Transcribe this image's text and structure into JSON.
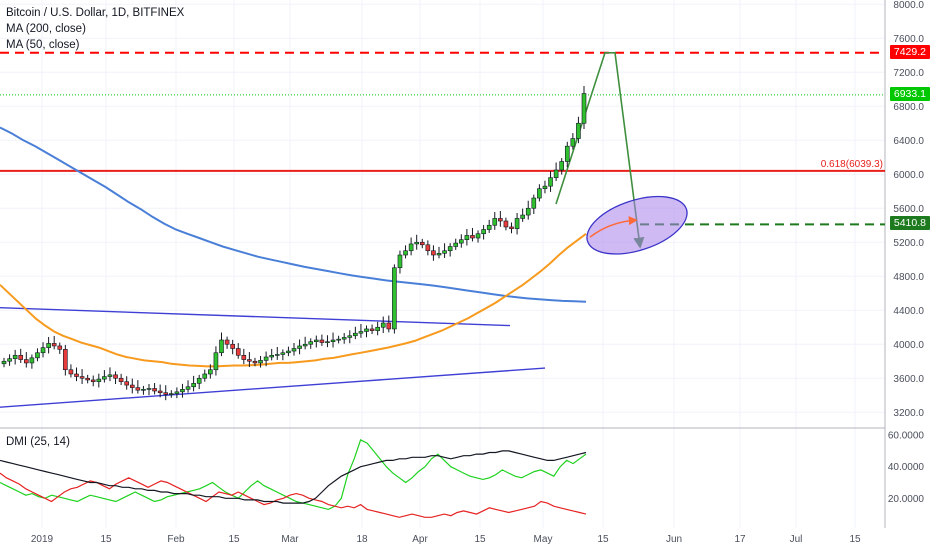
{
  "chart_data": {
    "type": "line",
    "title": "Bitcoin / U.S. Dollar, 1D, BITFINEX",
    "indicators": [
      "MA (200, close)",
      "MA (50, close)"
    ],
    "x_tick_labels": [
      "2019",
      "15",
      "Feb",
      "15",
      "Mar",
      "18",
      "Apr",
      "15",
      "May",
      "15",
      "Jun",
      "17",
      "Jul",
      "15"
    ],
    "y_tick_labels": [
      "8000.0",
      "7600.0",
      "7200.0",
      "6800.0",
      "6400.0",
      "6000.0",
      "5600.0",
      "5200.0",
      "4800.0",
      "4400.0",
      "4000.0",
      "3600.0",
      "3200.0"
    ],
    "ylim": [
      3050,
      8050
    ],
    "levels": {
      "target": {
        "value": 7429.2,
        "label": "7429.2",
        "color": "#ff0000"
      },
      "current": {
        "value": 6933.1,
        "label": "6933.1",
        "color": "#00c800"
      },
      "fib": {
        "value": 6039.3,
        "label": "0.618(6039.3)",
        "color": "#e8201c"
      },
      "support": {
        "value": 5410.8,
        "label": "5410.8",
        "color": "#1e7a1e"
      }
    },
    "price_series": [
      3800,
      3830,
      3870,
      3820,
      3780,
      3840,
      3900,
      3960,
      4010,
      3980,
      3940,
      3700,
      3650,
      3620,
      3600,
      3580,
      3560,
      3590,
      3620,
      3640,
      3600,
      3560,
      3520,
      3490,
      3460,
      3470,
      3480,
      3450,
      3430,
      3410,
      3420,
      3440,
      3470,
      3500,
      3540,
      3600,
      3650,
      3700,
      3900,
      4050,
      4000,
      3950,
      3870,
      3820,
      3800,
      3780,
      3810,
      3850,
      3870,
      3880,
      3900,
      3920,
      3950,
      3980,
      4000,
      4030,
      4050,
      4020,
      4030,
      4050,
      4060,
      4080,
      4100,
      4130,
      4150,
      4180,
      4160,
      4200,
      4250,
      4180,
      4900,
      5050,
      5100,
      5180,
      5200,
      5170,
      5100,
      5050,
      5070,
      5100,
      5150,
      5190,
      5230,
      5280,
      5250,
      5300,
      5350,
      5400,
      5480,
      5450,
      5380,
      5360,
      5480,
      5520,
      5600,
      5720,
      5830,
      5860,
      5960,
      6050,
      6150,
      6330,
      6420,
      6600,
      6950
    ],
    "ma200_series": [
      6550,
      6480,
      6400,
      6330,
      6250,
      6170,
      6090,
      6010,
      5930,
      5850,
      5760,
      5670,
      5590,
      5500,
      5420,
      5350,
      5300,
      5250,
      5200,
      5150,
      5110,
      5070,
      5030,
      5000,
      4970,
      4940,
      4910,
      4885,
      4860,
      4835,
      4810,
      4790,
      4770,
      4750,
      4735,
      4720,
      4705,
      4690,
      4670,
      4650,
      4630,
      4610,
      4590,
      4570,
      4555,
      4540,
      4530,
      4520,
      4510,
      4505,
      4500
    ],
    "ma50_series": [
      4700,
      4600,
      4500,
      4400,
      4300,
      4220,
      4150,
      4100,
      4060,
      4020,
      3990,
      3960,
      3920,
      3880,
      3850,
      3830,
      3810,
      3800,
      3790,
      3770,
      3760,
      3750,
      3745,
      3740,
      3740,
      3745,
      3750,
      3750,
      3755,
      3760,
      3770,
      3780,
      3780,
      3790,
      3800,
      3810,
      3830,
      3840,
      3860,
      3880,
      3900,
      3920,
      3940,
      3960,
      3985,
      4010,
      4040,
      4080,
      4120,
      4160,
      4210,
      4260,
      4310,
      4370,
      4430,
      4490,
      4560,
      4630,
      4700,
      4780,
      4860,
      4950,
      5050,
      5140,
      5220,
      5300
    ],
    "dmi": {
      "label": "DMI (25, 14)",
      "y_tick_labels": [
        "60.0000",
        "40.0000",
        "20.0000"
      ],
      "ylim": [
        5,
        62
      ],
      "plus_di": [
        30,
        28,
        26,
        24,
        22,
        23,
        21,
        20,
        22,
        21,
        20,
        19,
        18,
        20,
        22,
        21,
        20,
        19,
        18,
        20,
        22,
        24,
        22,
        20,
        18,
        19,
        21,
        22,
        23,
        24,
        25,
        26,
        28,
        30,
        27,
        24,
        22,
        20,
        24,
        28,
        31,
        28,
        26,
        24,
        22,
        20,
        18,
        17,
        16,
        15,
        14,
        13,
        15,
        20,
        35,
        45,
        57,
        55,
        50,
        45,
        40,
        36,
        33,
        30,
        33,
        37,
        40,
        45,
        48,
        44,
        40,
        38,
        36,
        34,
        33,
        32,
        33,
        35,
        38,
        36,
        34,
        33,
        35,
        37,
        38,
        36,
        34,
        40,
        44,
        42,
        45,
        48
      ],
      "minus_di": [
        36,
        33,
        31,
        29,
        26,
        24,
        22,
        20,
        18,
        21,
        24,
        26,
        27,
        29,
        31,
        30,
        28,
        26,
        29,
        31,
        33,
        31,
        29,
        27,
        29,
        31,
        30,
        28,
        26,
        24,
        22,
        20,
        18,
        21,
        24,
        23,
        22,
        24,
        22,
        20,
        18,
        16,
        17,
        19,
        20,
        22,
        23,
        22,
        20,
        19,
        18,
        16,
        15,
        14,
        15,
        14,
        16,
        13,
        12,
        11,
        10,
        9,
        8,
        9,
        10,
        9,
        8,
        8,
        9,
        10,
        9,
        11,
        12,
        11,
        10,
        12,
        14,
        13,
        12,
        11,
        12,
        13,
        14,
        15,
        18,
        17,
        15,
        14,
        13,
        12,
        11,
        10
      ],
      "adx": [
        44,
        43,
        42,
        41,
        40,
        39,
        38,
        37,
        36,
        35,
        34,
        33,
        32,
        31,
        30,
        30,
        29,
        28,
        28,
        27,
        27,
        26,
        26,
        25,
        25,
        24,
        24,
        23,
        23,
        23,
        22,
        22,
        21,
        21,
        21,
        20,
        20,
        20,
        19,
        19,
        19,
        18,
        18,
        18,
        17,
        17,
        17,
        17,
        18,
        20,
        24,
        28,
        31,
        34,
        36,
        38,
        40,
        41,
        42,
        43,
        44,
        44,
        45,
        45,
        46,
        46,
        46,
        47,
        47,
        46,
        45,
        46,
        47,
        47,
        48,
        48,
        49,
        49,
        50,
        50,
        49,
        48,
        47,
        46,
        45,
        44,
        44,
        45,
        46,
        47,
        48,
        49
      ]
    },
    "annotations": {
      "triangle_upper": [
        [
          0,
          4430
        ],
        [
          510,
          4220
        ]
      ],
      "triangle_lower": [
        [
          0,
          3260
        ],
        [
          545,
          3720
        ]
      ]
    }
  }
}
